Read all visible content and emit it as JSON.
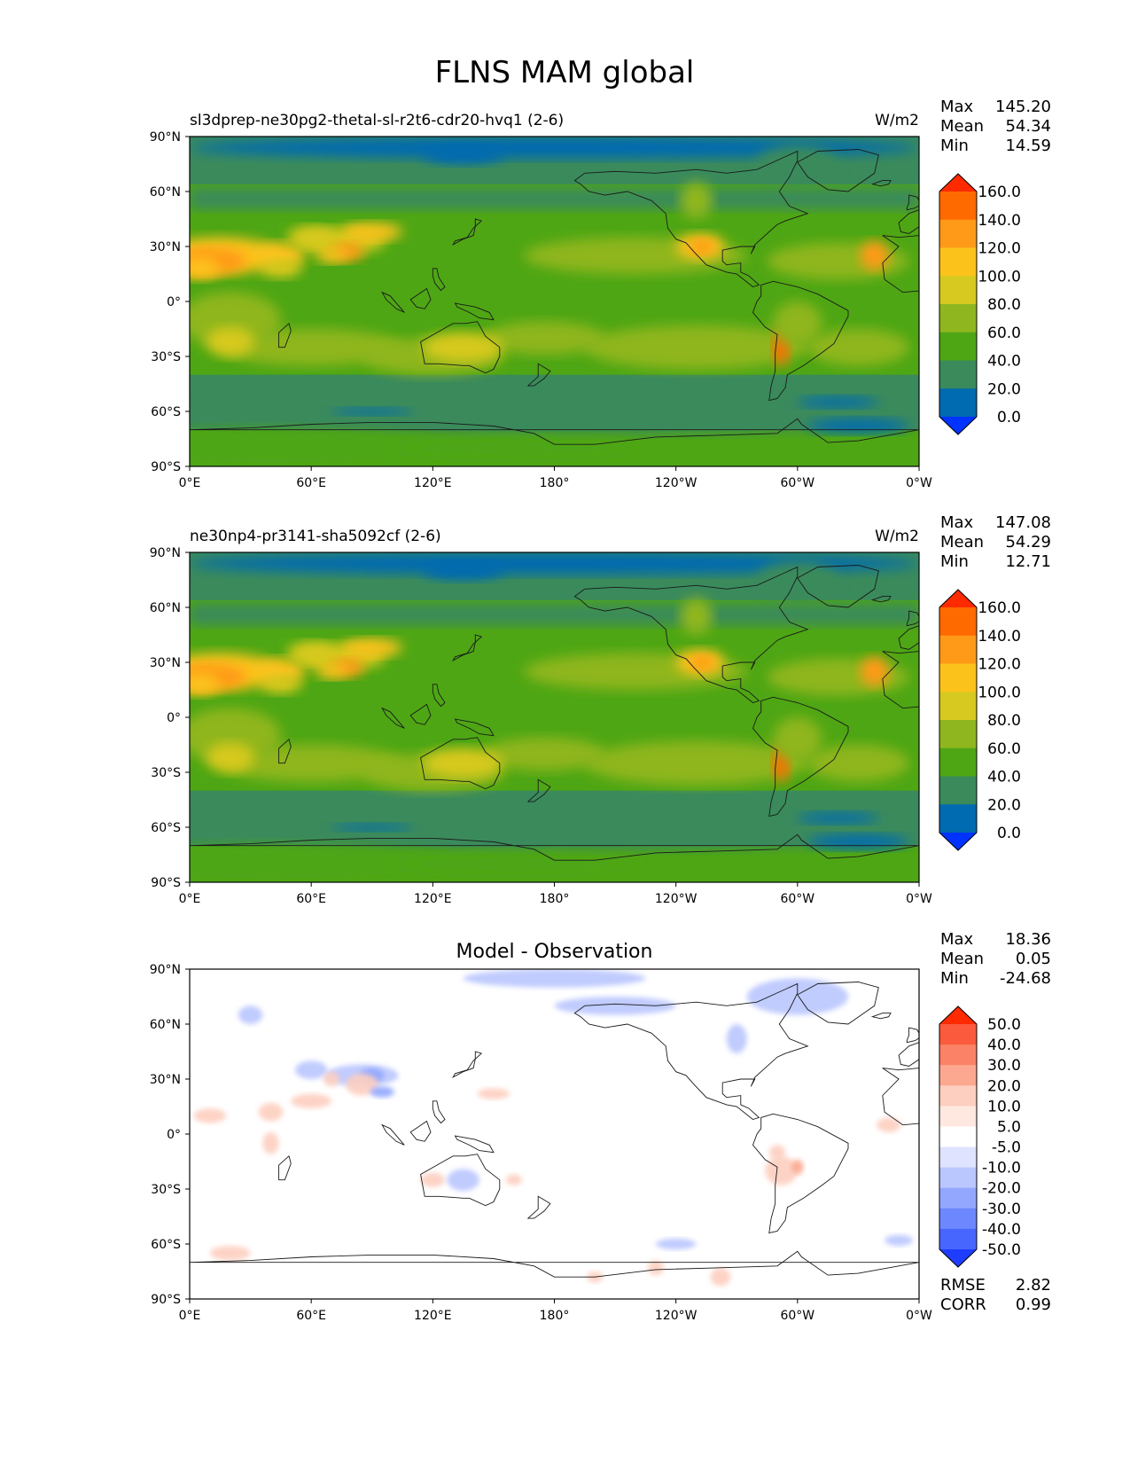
{
  "figure_title": "FLNS MAM global",
  "lat_ticks": [
    "90°N",
    "60°N",
    "30°N",
    "0°",
    "30°S",
    "60°S",
    "90°S"
  ],
  "lon_ticks": [
    "0°E",
    "60°E",
    "120°E",
    "180°",
    "120°W",
    "60°W",
    "0°W"
  ],
  "stats_labels": {
    "max": "Max",
    "mean": "Mean",
    "min": "Min",
    "rmse": "RMSE",
    "corr": "CORR"
  },
  "panels": [
    {
      "title_left": "sl3dprep-ne30pg2-thetal-sl-r2t6-cdr20-hvq1 (2-6)",
      "title_center": "",
      "units": "W/m2",
      "stats": {
        "max": "145.20",
        "mean": "54.34",
        "min": "14.59"
      },
      "colorbar": {
        "levels": [
          "160.0",
          "140.0",
          "120.0",
          "100.0",
          "80.0",
          "60.0",
          "40.0",
          "20.0",
          "0.0"
        ],
        "colors": [
          "#ff2a00",
          "#ff6a00",
          "#ff9a18",
          "#fcc21c",
          "#d7c91f",
          "#8fb61f",
          "#4ea614",
          "#3a8a5c",
          "#006bb0",
          "#0033ff"
        ]
      }
    },
    {
      "title_left": "ne30np4-pr3141-sha5092cf (2-6)",
      "title_center": "",
      "units": "W/m2",
      "stats": {
        "max": "147.08",
        "mean": "54.29",
        "min": "12.71"
      },
      "colorbar": {
        "levels": [
          "160.0",
          "140.0",
          "120.0",
          "100.0",
          "80.0",
          "60.0",
          "40.0",
          "20.0",
          "0.0"
        ],
        "colors": [
          "#ff2a00",
          "#ff6a00",
          "#ff9a18",
          "#fcc21c",
          "#d7c91f",
          "#8fb61f",
          "#4ea614",
          "#3a8a5c",
          "#006bb0",
          "#0033ff"
        ]
      }
    },
    {
      "title_left": "",
      "title_center": "Model - Observation",
      "units": "",
      "stats": {
        "max": "18.36",
        "mean": "0.05",
        "min": "-24.68"
      },
      "extra_stats": {
        "rmse": "2.82",
        "corr": "0.99"
      },
      "colorbar": {
        "levels": [
          "50.0",
          "40.0",
          "30.0",
          "20.0",
          "10.0",
          "5.0",
          "-5.0",
          "-10.0",
          "-20.0",
          "-30.0",
          "-40.0",
          "-50.0"
        ],
        "colors": [
          "#ff2a00",
          "#fc5a3c",
          "#fb8266",
          "#fca890",
          "#fdcfc0",
          "#fee8e0",
          "#ffffff",
          "#dfe3ff",
          "#bac6fe",
          "#93a7fe",
          "#6d87fe",
          "#4766fe",
          "#1f3dff"
        ]
      }
    }
  ]
}
